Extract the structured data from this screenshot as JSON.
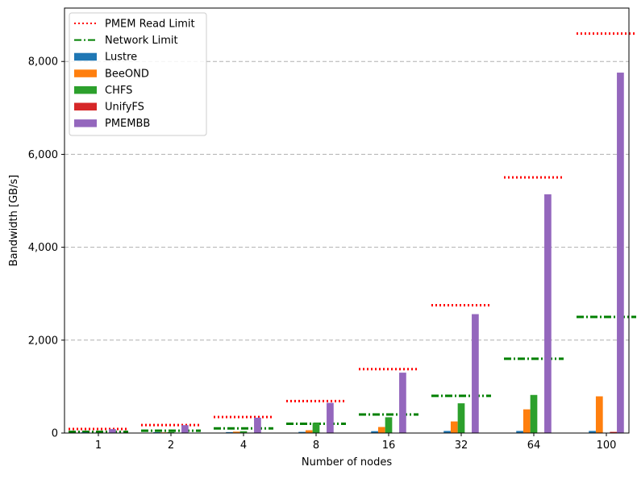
{
  "chart_data": {
    "type": "bar",
    "xlabel": "Number of nodes",
    "ylabel": "Bandwidth [GB/s]",
    "ylim": [
      0,
      9150
    ],
    "yticks": [
      0,
      2000,
      4000,
      6000,
      8000
    ],
    "ytick_labels": [
      "0",
      "2,000",
      "4,000",
      "6,000",
      "8,000"
    ],
    "grid": "horizontal dashed",
    "legend_position": "top-left",
    "categories": [
      "1",
      "2",
      "4",
      "8",
      "16",
      "32",
      "64",
      "100"
    ],
    "series": [
      {
        "name": "Lustre",
        "color": "#1f77b4",
        "values": [
          15,
          18,
          20,
          25,
          40,
          45,
          45,
          45
        ]
      },
      {
        "name": "BeeOND",
        "color": "#ff7f0e",
        "values": [
          8,
          14,
          30,
          60,
          130,
          250,
          510,
          790
        ]
      },
      {
        "name": "CHFS",
        "color": "#2ca02c",
        "values": [
          12,
          20,
          40,
          220,
          340,
          640,
          820,
          0
        ]
      },
      {
        "name": "UnifyFS",
        "color": "#d62728",
        "values": [
          5,
          5,
          5,
          5,
          5,
          5,
          10,
          25
        ]
      },
      {
        "name": "PMEMBB",
        "color": "#9467bd",
        "values": [
          85,
          170,
          330,
          650,
          1300,
          2560,
          5140,
          7760
        ]
      }
    ],
    "reference_lines": [
      {
        "name": "PMEM Read Limit",
        "color": "#ff0000",
        "style": "dotted",
        "values": [
          86,
          172,
          344,
          688,
          1376,
          2752,
          5504,
          8600
        ]
      },
      {
        "name": "Network Limit",
        "color": "#008000",
        "style": "dashdot",
        "values": [
          25,
          50,
          100,
          200,
          400,
          800,
          1600,
          2500
        ]
      }
    ]
  }
}
